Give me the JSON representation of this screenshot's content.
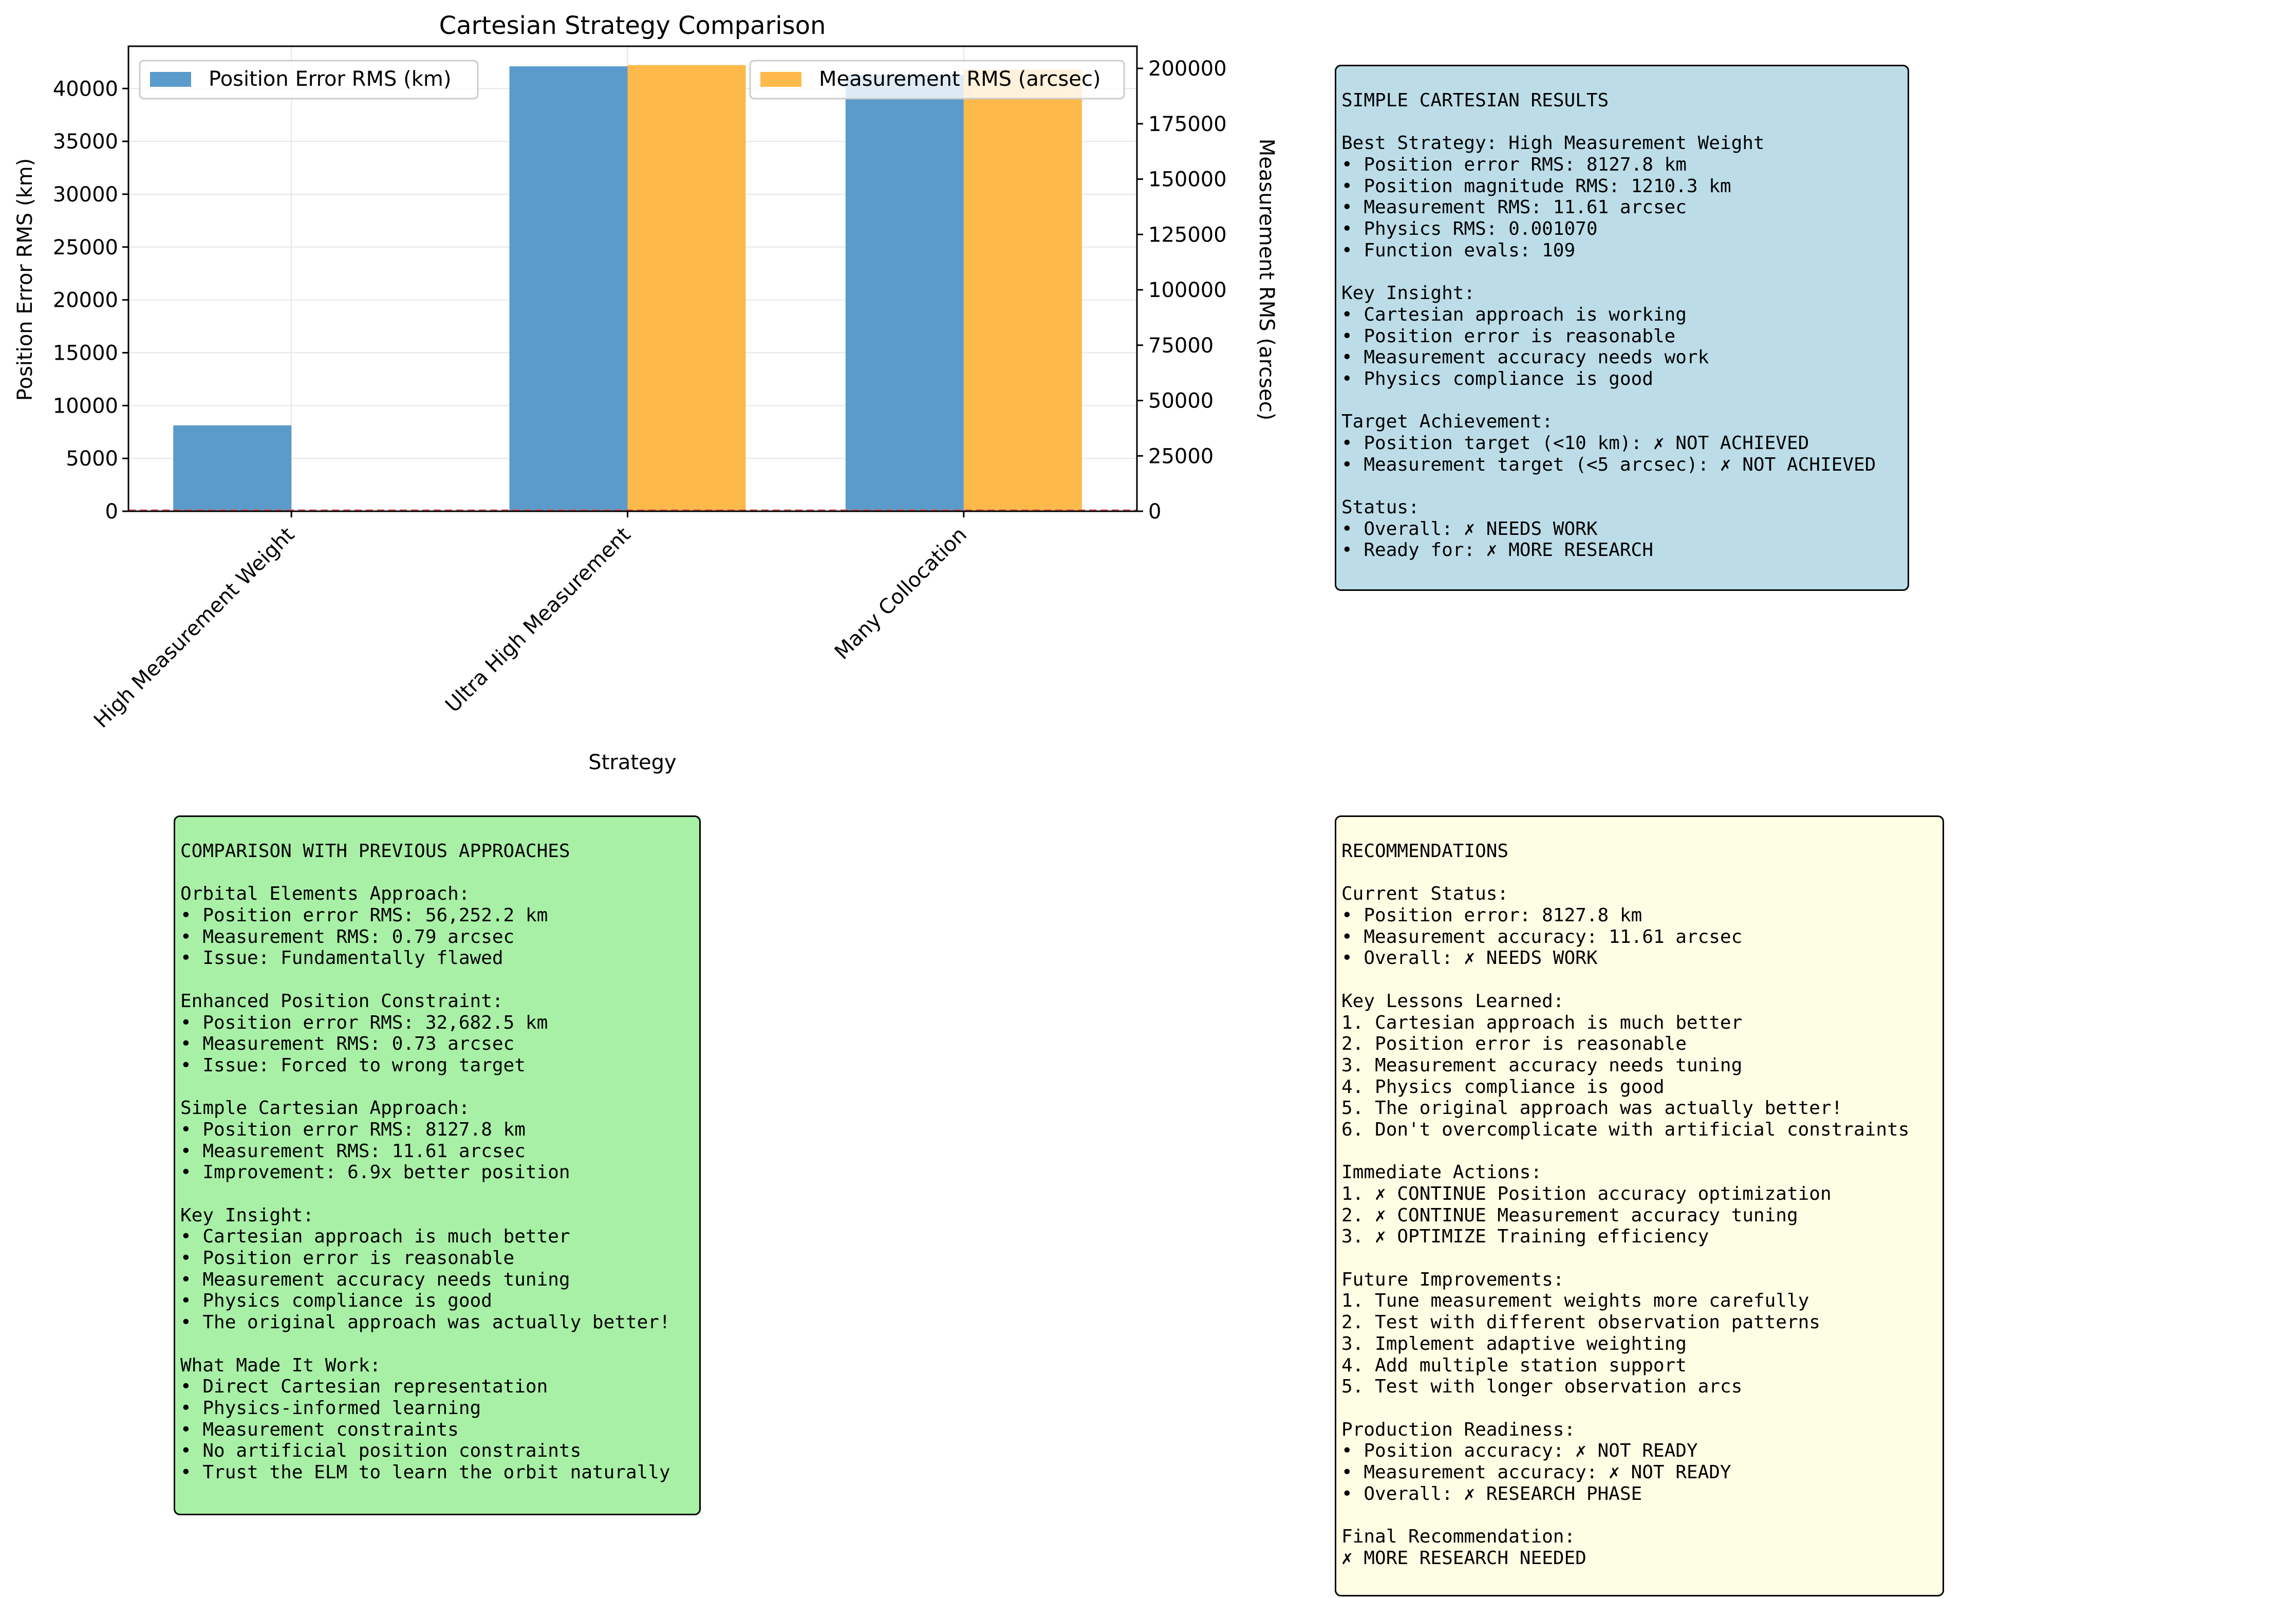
{
  "colors": {
    "position_bar": "#5b9bcb",
    "measurement_bar": "#fdb94a",
    "results_panel_bg": "#bcdde8",
    "comparison_panel_bg": "#a8f0a6",
    "recommendations_panel_bg": "#fefee4"
  },
  "chart_data": {
    "type": "bar",
    "title": "Cartesian Strategy Comparison",
    "xlabel": "Strategy",
    "ylabel": "Position Error RMS (km)",
    "y2label": "Measurement RMS (arcsec)",
    "categories": [
      "High Measurement Weight",
      "Ultra High Measurement",
      "Many Collocation"
    ],
    "ylim": [
      0,
      44000
    ],
    "y2lim": [
      0,
      210000
    ],
    "yticks": [
      "0",
      "5000",
      "10000",
      "15000",
      "20000",
      "25000",
      "30000",
      "35000",
      "40000"
    ],
    "y2ticks": [
      "0",
      "25000",
      "50000",
      "75000",
      "100000",
      "125000",
      "150000",
      "175000",
      "200000"
    ],
    "grid": true,
    "series": [
      {
        "name": "Position Error RMS (km)",
        "axis": "left",
        "values": [
          8127.8,
          42100,
          41300
        ]
      },
      {
        "name": "Measurement RMS (arcsec)",
        "axis": "right",
        "values": [
          11.61,
          201500,
          199500
        ]
      }
    ],
    "reference_line": {
      "axis": "left",
      "value": 0,
      "style": "dashed"
    },
    "legend_left": "upper-left",
    "legend_right": "upper-right"
  },
  "panels": {
    "results": [
      "SIMPLE CARTESIAN RESULTS",
      "",
      "Best Strategy: High Measurement Weight",
      "• Position error RMS: 8127.8 km",
      "• Position magnitude RMS: 1210.3 km",
      "• Measurement RMS: 11.61 arcsec",
      "• Physics RMS: 0.001070",
      "• Function evals: 109",
      "",
      "Key Insight:",
      "• Cartesian approach is working",
      "• Position error is reasonable",
      "• Measurement accuracy needs work",
      "• Physics compliance is good",
      "",
      "Target Achievement:",
      "• Position target (<10 km): ✗ NOT ACHIEVED",
      "• Measurement target (<5 arcsec): ✗ NOT ACHIEVED",
      "",
      "Status:",
      "• Overall: ✗ NEEDS WORK",
      "• Ready for: ✗ MORE RESEARCH"
    ],
    "comparison": [
      "COMPARISON WITH PREVIOUS APPROACHES",
      "",
      "Orbital Elements Approach:",
      "• Position error RMS: 56,252.2 km",
      "• Measurement RMS: 0.79 arcsec",
      "• Issue: Fundamentally flawed",
      "",
      "Enhanced Position Constraint:",
      "• Position error RMS: 32,682.5 km",
      "• Measurement RMS: 0.73 arcsec",
      "• Issue: Forced to wrong target",
      "",
      "Simple Cartesian Approach:",
      "• Position error RMS: 8127.8 km",
      "• Measurement RMS: 11.61 arcsec",
      "• Improvement: 6.9x better position",
      "",
      "Key Insight:",
      "• Cartesian approach is much better",
      "• Position error is reasonable",
      "• Measurement accuracy needs tuning",
      "• Physics compliance is good",
      "• The original approach was actually better!",
      "",
      "What Made It Work:",
      "• Direct Cartesian representation",
      "• Physics-informed learning",
      "• Measurement constraints",
      "• No artificial position constraints",
      "• Trust the ELM to learn the orbit naturally"
    ],
    "recommendations": [
      "RECOMMENDATIONS",
      "",
      "Current Status:",
      "• Position error: 8127.8 km",
      "• Measurement accuracy: 11.61 arcsec",
      "• Overall: ✗ NEEDS WORK",
      "",
      "Key Lessons Learned:",
      "1. Cartesian approach is much better",
      "2. Position error is reasonable",
      "3. Measurement accuracy needs tuning",
      "4. Physics compliance is good",
      "5. The original approach was actually better!",
      "6. Don't overcomplicate with artificial constraints",
      "",
      "Immediate Actions:",
      "1. ✗ CONTINUE Position accuracy optimization",
      "2. ✗ CONTINUE Measurement accuracy tuning",
      "3. ✗ OPTIMIZE Training efficiency",
      "",
      "Future Improvements:",
      "1. Tune measurement weights more carefully",
      "2. Test with different observation patterns",
      "3. Implement adaptive weighting",
      "4. Add multiple station support",
      "5. Test with longer observation arcs",
      "",
      "Production Readiness:",
      "• Position accuracy: ✗ NOT READY",
      "• Measurement accuracy: ✗ NOT READY",
      "• Overall: ✗ RESEARCH PHASE",
      "",
      "Final Recommendation:",
      "✗ MORE RESEARCH NEEDED"
    ]
  }
}
